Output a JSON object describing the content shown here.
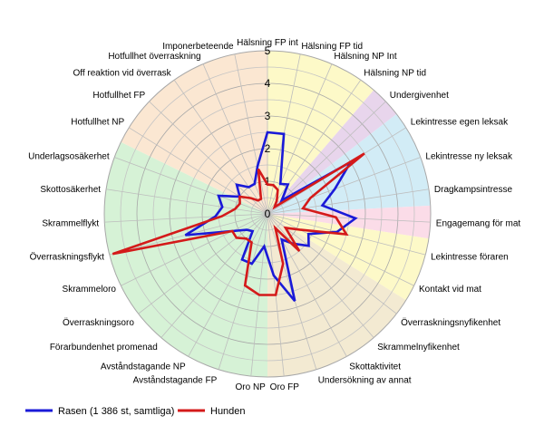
{
  "chart_data": {
    "type": "radar",
    "rmax": 5,
    "ticks": [
      "0",
      "1",
      "2",
      "3",
      "4",
      "5"
    ],
    "categories": [
      "Hälsning FP int",
      "Hälsning FP tid",
      "Hälsning NP Int",
      "Hälsning NP tid",
      "Undergivenhet",
      "Lekintresse egen leksak",
      "Lekintresse ny leksak",
      "Dragkampsintresse",
      "Engagemang för mat",
      "Lekintresse föraren",
      "Kontakt vid mat",
      "Överraskningsnyfikenhet",
      "Skrammelnyfikenhet",
      "Skottaktivitet",
      "Undersökning av annat",
      "Oro FP",
      "Oro NP",
      "Avståndstagande FP",
      "Avståndstagande NP",
      "Förarbundenhet promenad",
      "Överraskningsoro",
      "Skrammeloro",
      "Överraskningsflykt",
      "Skrammelflykt",
      "Skottosäkerhet",
      "Underlagsosäkerhet",
      "Hotfullhet NP",
      "Hotfullhet FP",
      "Off reaktion vid överrask",
      "Hotfullhet överraskning",
      "Imponerbeteende"
    ],
    "sectors": [
      {
        "from": 0,
        "to": 3.5,
        "color": "#fdf9c8"
      },
      {
        "from": 3.5,
        "to": 4.5,
        "color": "#e8d5ec"
      },
      {
        "from": 4.5,
        "to": 7.5,
        "color": "#d2ecf6"
      },
      {
        "from": 7.5,
        "to": 8.5,
        "color": "#fbdce8"
      },
      {
        "from": 8.5,
        "to": 10.5,
        "color": "#fdf9c8"
      },
      {
        "from": 10.5,
        "to": 15.5,
        "color": "#f3ead2"
      },
      {
        "from": 15.5,
        "to": 25.5,
        "color": "#d6f2d6"
      },
      {
        "from": 25.5,
        "to": 31,
        "color": "#fbe7d2"
      }
    ],
    "series": [
      {
        "name": "Rasen (1 386 st, samtliga)",
        "color": "#1a1ad8",
        "values": [
          2.5,
          2.5,
          1.0,
          1.1,
          0.6,
          3.0,
          2.2,
          1.7,
          2.7,
          2.2,
          1.4,
          1.6,
          1.2,
          0.9,
          2.8,
          1.9,
          1.0,
          1.6,
          1.6,
          0.7,
          0.8,
          1.2,
          2.6,
          1.6,
          1.4,
          1.6,
          1.0,
          1.3,
          1.0,
          1.0,
          1.5
        ]
      },
      {
        "name": "Hunden",
        "color": "#d41a1a",
        "values": [
          0.9,
          0.9,
          0.8,
          0.5,
          0.3,
          3.5,
          1.4,
          1.1,
          2.1,
          2.5,
          1.1,
          0.7,
          1.5,
          0.5,
          1.6,
          2.5,
          2.5,
          2.3,
          1.0,
          1.0,
          1.2,
          1.2,
          4.9,
          1.4,
          1.0,
          0.9,
          1.0,
          0.7,
          0.5,
          0.5,
          1.4
        ]
      }
    ]
  }
}
